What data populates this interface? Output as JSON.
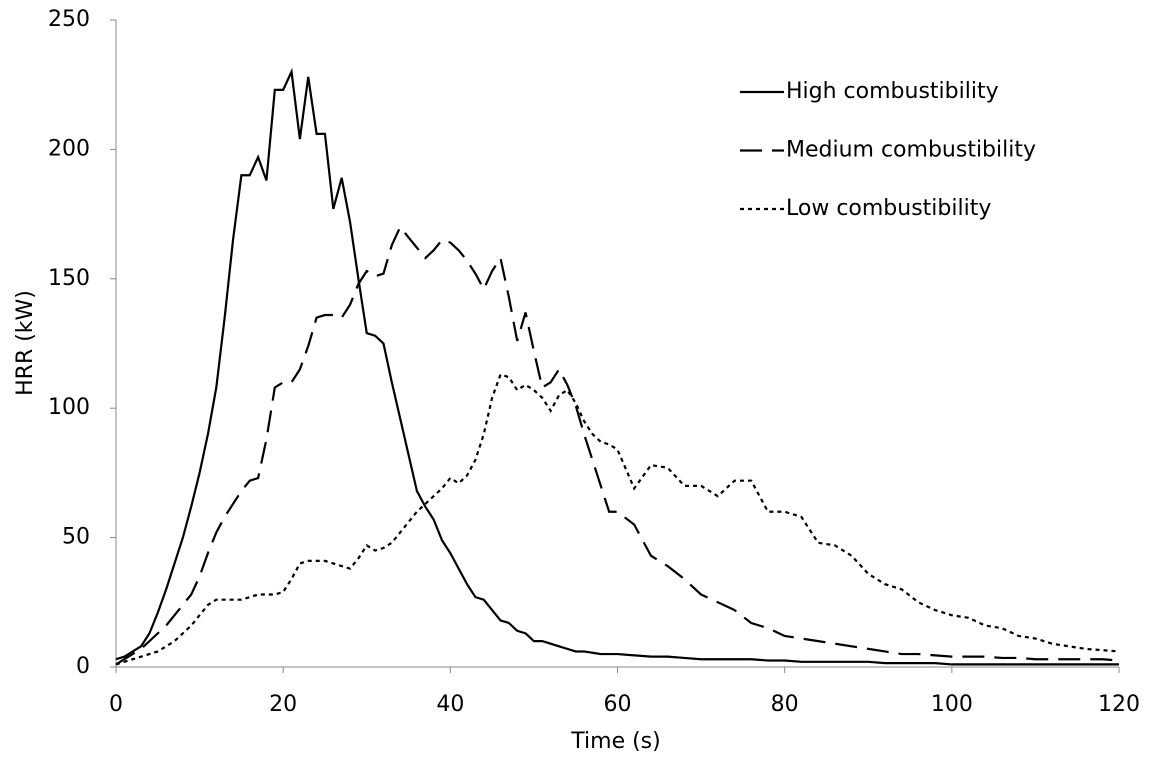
{
  "chart_data": {
    "type": "line",
    "x_label": "Time (s)",
    "y_label": "HRR (kW)",
    "xlim": [
      0,
      120
    ],
    "xticks": [
      0,
      20,
      40,
      60,
      80,
      100,
      120
    ],
    "ylim": [
      0,
      250
    ],
    "yticks": [
      0,
      50,
      100,
      150,
      200,
      250
    ],
    "grid": false,
    "legend": "top-right",
    "x": [
      0,
      1,
      2,
      3,
      4,
      5,
      6,
      7,
      8,
      9,
      10,
      11,
      12,
      13,
      14,
      15,
      16,
      17,
      18,
      19,
      20,
      21,
      22,
      23,
      24,
      25,
      26,
      27,
      28,
      29,
      30,
      31,
      32,
      33,
      34,
      35,
      36,
      37,
      38,
      39,
      40,
      41,
      42,
      43,
      44,
      45,
      46,
      47,
      48,
      49,
      50,
      51,
      52,
      53,
      54,
      55,
      56,
      57,
      58,
      59,
      60,
      62,
      64,
      66,
      68,
      70,
      72,
      74,
      76,
      78,
      80,
      82,
      84,
      86,
      88,
      90,
      92,
      94,
      96,
      98,
      100,
      102,
      104,
      106,
      108,
      110,
      112,
      114,
      116,
      118,
      120
    ],
    "series": [
      {
        "name": "High combustibility",
        "color": "#000000",
        "dash": "solid",
        "values": [
          3,
          4,
          6,
          8,
          13,
          21,
          30,
          40,
          50,
          62,
          75,
          90,
          108,
          135,
          165,
          190,
          190,
          197,
          188,
          223,
          223,
          230,
          204,
          228,
          206,
          206,
          177,
          189,
          172,
          150,
          129,
          128,
          125,
          110,
          96,
          82,
          68,
          62,
          57,
          49,
          44,
          38,
          32,
          27,
          26,
          22,
          18,
          17,
          14,
          13,
          10,
          10,
          9,
          8,
          7,
          6,
          6,
          5.5,
          5,
          5,
          5,
          4.5,
          4,
          4,
          3.5,
          3,
          3,
          3,
          3,
          2.5,
          2.5,
          2,
          2,
          2,
          2,
          2,
          1.5,
          1.5,
          1.5,
          1.5,
          1,
          1,
          1,
          1,
          1,
          1,
          1,
          1,
          1,
          1,
          1
        ]
      },
      {
        "name": "Medium combustibility",
        "color": "#000000",
        "dash": "long-dash",
        "values": [
          1,
          3,
          5,
          7,
          10,
          13,
          16,
          20,
          24,
          28,
          35,
          44,
          52,
          58,
          63,
          68,
          72,
          73,
          88,
          108,
          110,
          110,
          115,
          124,
          135,
          136,
          136,
          135,
          140,
          148,
          153,
          151,
          152,
          163,
          170,
          166,
          162,
          158,
          161,
          165,
          164,
          161,
          157,
          152,
          146,
          153,
          158,
          143,
          126,
          137,
          122,
          108,
          110,
          115,
          109,
          101,
          90,
          80,
          70,
          60,
          60,
          55,
          43,
          39,
          34,
          28,
          25,
          22,
          17,
          15,
          12,
          11,
          10,
          9,
          8,
          7,
          6,
          5,
          5,
          4.5,
          4,
          4,
          4,
          3.5,
          3.5,
          3,
          3,
          3,
          3,
          3,
          2.5
        ]
      },
      {
        "name": "Low combustibility",
        "color": "#000000",
        "dash": "dot",
        "values": [
          1,
          2,
          3,
          4,
          5,
          6,
          8,
          10,
          13,
          16,
          20,
          24,
          26,
          26,
          26,
          26,
          27,
          28,
          28,
          28,
          29,
          34,
          40,
          41,
          41,
          41,
          40,
          39,
          38,
          42,
          47,
          45,
          46,
          48,
          52,
          56,
          60,
          63,
          66,
          69,
          73,
          71,
          74,
          80,
          90,
          104,
          113,
          112,
          107,
          109,
          107,
          104,
          99,
          105,
          107,
          102,
          95,
          90,
          87,
          86,
          84,
          69,
          78,
          77,
          70,
          70,
          66,
          72,
          72,
          60,
          60,
          58,
          48,
          47,
          43,
          36,
          32,
          30,
          25,
          22,
          20,
          19,
          16,
          15,
          12,
          11,
          9,
          8,
          7,
          6.5,
          6
        ]
      }
    ]
  }
}
